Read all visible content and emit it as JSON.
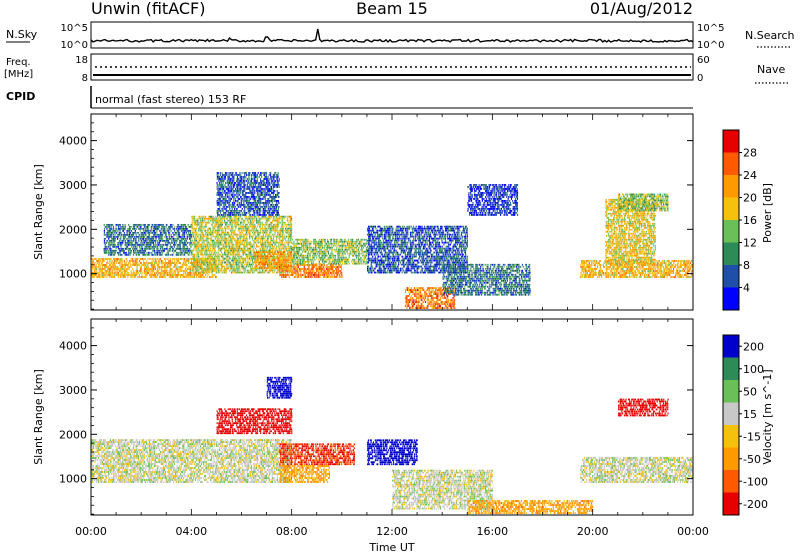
{
  "header": {
    "station": "Unwin (fitACF)",
    "beam": "Beam 15",
    "date": "01/Aug/2012"
  },
  "nsky_panel": {
    "left_label": "N.Sky",
    "left_top_tick": "10^5",
    "left_bottom_tick": "10^0",
    "right_label": "N.Search",
    "right_top_tick": "10^5",
    "right_bottom_tick": "10^0"
  },
  "freq_panel": {
    "left_label": "Freq.",
    "left_units": "[MHz]",
    "left_top_tick": "18",
    "left_bottom_tick": "8",
    "right_label": "Nave",
    "right_top_tick": "60",
    "right_bottom_tick": "0"
  },
  "cpid_panel": {
    "label": "CPID",
    "text": "normal (fast stereo) 153 RF"
  },
  "colors": {
    "power_scale": [
      "#0000ff",
      "#1f4fa8",
      "#2e8b57",
      "#6bbf59",
      "#f4c20d",
      "#ff9900",
      "#ff5a00",
      "#e60000"
    ],
    "velocity_scale": [
      "#e60000",
      "#ff5a00",
      "#ff9900",
      "#f4c20d",
      "#c8c8c8",
      "#6bbf59",
      "#2e8b57",
      "#0000cc"
    ]
  },
  "chart_data": [
    {
      "type": "heatmap",
      "title": "",
      "xlabel": "Time UT",
      "ylabel": "Slant Range [km]",
      "xlim": [
        "00:00",
        "24:00"
      ],
      "ylim": [
        180,
        4600
      ],
      "x_ticks": [
        "00:00",
        "04:00",
        "08:00",
        "12:00",
        "16:00",
        "20:00",
        "00:00"
      ],
      "y_ticks": [
        "1000",
        "2000",
        "3000",
        "4000"
      ],
      "colorbar": {
        "label": "Power [dB]",
        "range": [
          0,
          30
        ],
        "tick_labels": [
          "4",
          "8",
          "12",
          "16",
          "20",
          "24",
          "28"
        ]
      },
      "regions": [
        {
          "t_start": 0.0,
          "t_end": 5.0,
          "range_start": 900,
          "range_end": 1350,
          "value": 20
        },
        {
          "t_start": 0.5,
          "t_end": 4.0,
          "range_start": 1400,
          "range_end": 2100,
          "value": 8
        },
        {
          "t_start": 4.0,
          "t_end": 8.0,
          "range_start": 1000,
          "range_end": 2300,
          "value": 16
        },
        {
          "t_start": 5.0,
          "t_end": 7.5,
          "range_start": 2300,
          "range_end": 3300,
          "value": 6
        },
        {
          "t_start": 6.5,
          "t_end": 8.0,
          "range_start": 1100,
          "range_end": 1500,
          "value": 22
        },
        {
          "t_start": 7.5,
          "t_end": 10.0,
          "range_start": 900,
          "range_end": 1200,
          "value": 24
        },
        {
          "t_start": 8.0,
          "t_end": 11.0,
          "range_start": 1200,
          "range_end": 1800,
          "value": 14
        },
        {
          "t_start": 11.0,
          "t_end": 15.0,
          "range_start": 1000,
          "range_end": 2100,
          "value": 6
        },
        {
          "t_start": 12.5,
          "t_end": 14.5,
          "range_start": 200,
          "range_end": 700,
          "value": 24
        },
        {
          "t_start": 15.0,
          "t_end": 17.0,
          "range_start": 2300,
          "range_end": 3000,
          "value": 4
        },
        {
          "t_start": 14.0,
          "t_end": 17.5,
          "range_start": 500,
          "range_end": 1200,
          "value": 8
        },
        {
          "t_start": 19.5,
          "t_end": 24.0,
          "range_start": 900,
          "range_end": 1300,
          "value": 20
        },
        {
          "t_start": 20.5,
          "t_end": 22.5,
          "range_start": 1200,
          "range_end": 2700,
          "value": 18
        },
        {
          "t_start": 21.0,
          "t_end": 23.0,
          "range_start": 2400,
          "range_end": 2800,
          "value": 14
        }
      ]
    },
    {
      "type": "heatmap",
      "title": "",
      "xlabel": "Time UT",
      "ylabel": "Slant Range [km]",
      "xlim": [
        "00:00",
        "24:00"
      ],
      "ylim": [
        180,
        4600
      ],
      "x_ticks": [
        "00:00",
        "04:00",
        "08:00",
        "12:00",
        "16:00",
        "20:00",
        "00:00"
      ],
      "y_ticks": [
        "1000",
        "2000",
        "3000",
        "4000"
      ],
      "colorbar": {
        "label": "Velocity [m s^-1]",
        "tick_labels": [
          "200",
          "100",
          "50",
          "15",
          "-15",
          "-50",
          "-100",
          "-200"
        ]
      },
      "regions": [
        {
          "t_start": 0.0,
          "t_end": 8.0,
          "range_start": 900,
          "range_end": 1900,
          "value": 0
        },
        {
          "t_start": 5.0,
          "t_end": 8.0,
          "range_start": 2000,
          "range_end": 2600,
          "value": -200
        },
        {
          "t_start": 7.0,
          "t_end": 8.0,
          "range_start": 2800,
          "range_end": 3300,
          "value": 200
        },
        {
          "t_start": 7.5,
          "t_end": 10.5,
          "range_start": 1300,
          "range_end": 1800,
          "value": -150
        },
        {
          "t_start": 7.5,
          "t_end": 9.5,
          "range_start": 900,
          "range_end": 1300,
          "value": -50
        },
        {
          "t_start": 11.0,
          "t_end": 13.0,
          "range_start": 1300,
          "range_end": 1900,
          "value": 150
        },
        {
          "t_start": 12.0,
          "t_end": 16.0,
          "range_start": 300,
          "range_end": 1200,
          "value": 0
        },
        {
          "t_start": 15.0,
          "t_end": 20.0,
          "range_start": 200,
          "range_end": 500,
          "value": -50
        },
        {
          "t_start": 19.5,
          "t_end": 24.0,
          "range_start": 900,
          "range_end": 1500,
          "value": 0
        },
        {
          "t_start": 21.0,
          "t_end": 23.0,
          "range_start": 2400,
          "range_end": 2800,
          "value": -200
        }
      ]
    }
  ]
}
